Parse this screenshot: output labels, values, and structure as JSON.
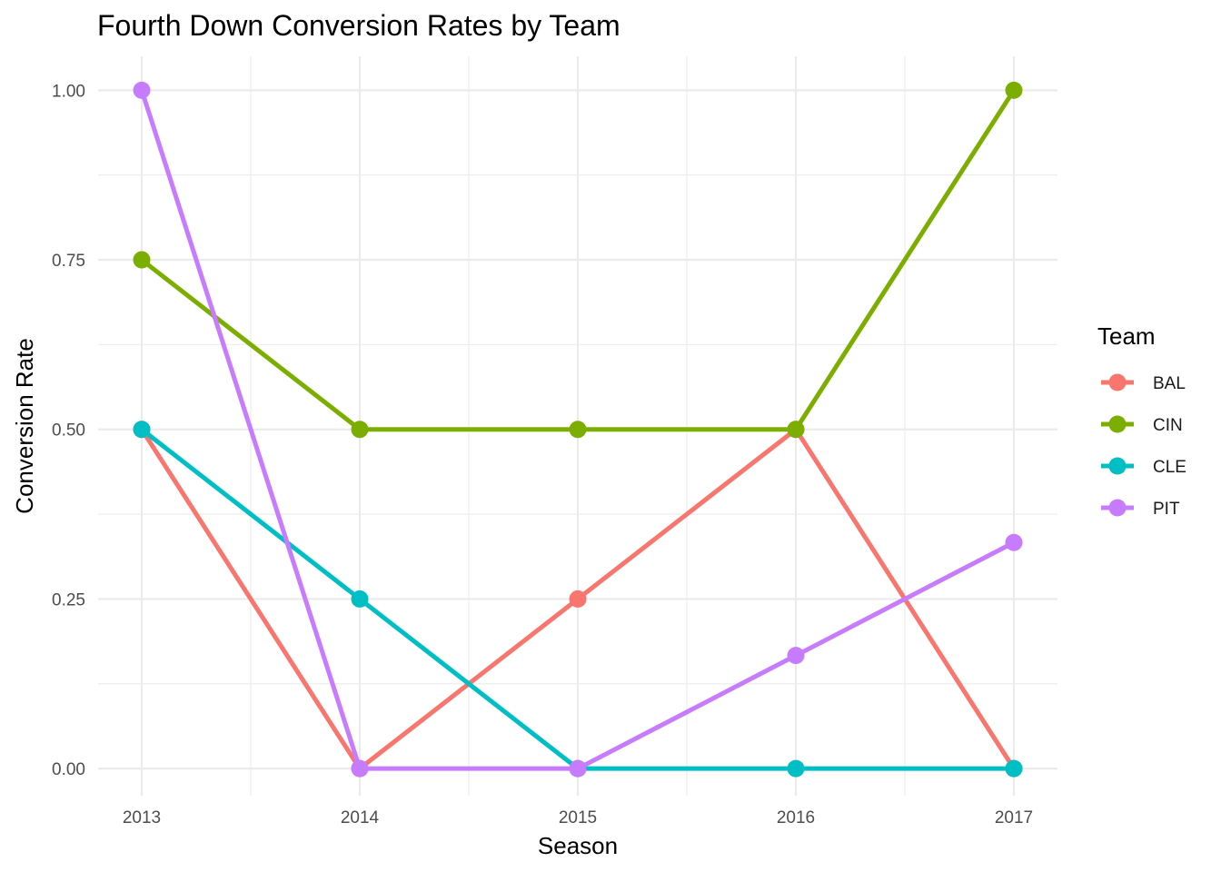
{
  "chart_data": {
    "type": "line",
    "title": "Fourth Down Conversion Rates by Team",
    "xlabel": "Season",
    "ylabel": "Conversion Rate",
    "x": [
      2013,
      2014,
      2015,
      2016,
      2017
    ],
    "x_tick_labels": [
      "2013",
      "2014",
      "2015",
      "2016",
      "2017"
    ],
    "y_ticks": [
      0.0,
      0.25,
      0.5,
      0.75,
      1.0
    ],
    "y_tick_labels": [
      "0.00",
      "0.25",
      "0.50",
      "0.75",
      "1.00"
    ],
    "xlim": [
      2012.8,
      2017.2
    ],
    "ylim": [
      -0.04,
      1.05
    ],
    "grid": true,
    "legend": {
      "title": "Team",
      "position": "right"
    },
    "series": [
      {
        "name": "BAL",
        "color": "#F8766D",
        "values": [
          0.5,
          0.0,
          0.25,
          0.5,
          0.0
        ]
      },
      {
        "name": "CIN",
        "color": "#7CAE00",
        "values": [
          0.75,
          0.5,
          0.5,
          0.5,
          1.0
        ]
      },
      {
        "name": "CLE",
        "color": "#00BFC4",
        "values": [
          0.5,
          0.25,
          0.0,
          0.0,
          0.0
        ]
      },
      {
        "name": "PIT",
        "color": "#C77CFF",
        "values": [
          1.0,
          0.0,
          0.0,
          0.1667,
          0.3333
        ]
      }
    ]
  }
}
